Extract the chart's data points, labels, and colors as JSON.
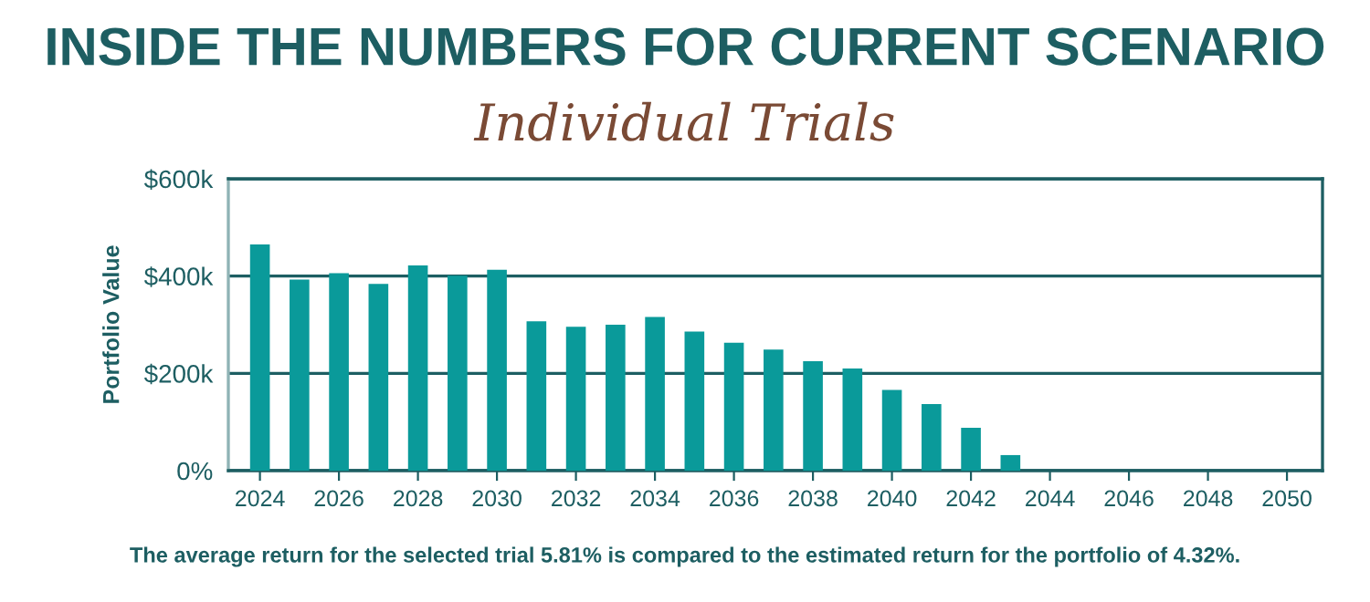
{
  "chart_data": {
    "type": "bar",
    "title": "INSIDE THE NUMBERS FOR CURRENT SCENARIO",
    "subtitle": "Individual Trials",
    "ylabel": "Portfolio Value",
    "x": [
      2024,
      2025,
      2026,
      2027,
      2028,
      2029,
      2030,
      2031,
      2032,
      2033,
      2034,
      2035,
      2036,
      2037,
      2038,
      2039,
      2040,
      2041,
      2042,
      2043
    ],
    "values": [
      465000,
      393000,
      406000,
      384000,
      422000,
      401000,
      413000,
      307000,
      296000,
      300000,
      316000,
      286000,
      263000,
      249000,
      225000,
      210000,
      166000,
      137000,
      88000,
      32000
    ],
    "color": "#0a9a9a",
    "xlim": [
      2023.2,
      2050.9
    ],
    "xticks": [
      2024,
      2026,
      2028,
      2030,
      2032,
      2034,
      2036,
      2038,
      2040,
      2042,
      2044,
      2046,
      2048,
      2050
    ],
    "ylim": [
      0,
      600000
    ],
    "yticks": [
      {
        "value": 0,
        "label": "0%"
      },
      {
        "value": 200000,
        "label": "$200k"
      },
      {
        "value": 400000,
        "label": "$400k"
      },
      {
        "value": 600000,
        "label": "$600k"
      }
    ],
    "grid": "y",
    "annotations": [
      "The average return for the selected trial 5.81% is compared to the estimated return for the portfolio of 4.32%."
    ]
  }
}
